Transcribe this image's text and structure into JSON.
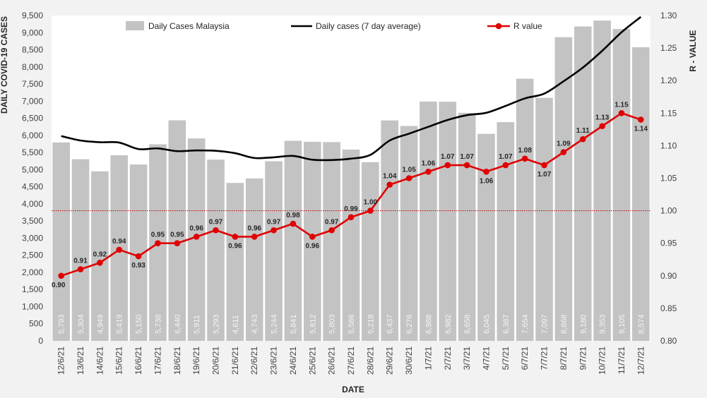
{
  "chart_data": {
    "type": "bar",
    "xlabel": "DATE",
    "ylabel": "DAILY COVID-19 CASES",
    "y2label": "R - VALUE",
    "ylim": [
      0,
      9500
    ],
    "y_ticks": [
      "0",
      "500",
      "1,000",
      "1,500",
      "2,000",
      "2,500",
      "3,000",
      "3,500",
      "4,000",
      "4,500",
      "5,000",
      "5,500",
      "6,000",
      "6,500",
      "7,000",
      "7,500",
      "8,000",
      "8,500",
      "9,000",
      "9,500"
    ],
    "y2lim": [
      0.8,
      1.3
    ],
    "y2_ticks": [
      "0.80",
      "0.85",
      "0.90",
      "0.95",
      "1.00",
      "1.05",
      "1.10",
      "1.15",
      "1.20",
      "1.25",
      "1.30"
    ],
    "legend_position": "top",
    "categories": [
      "12/6/21",
      "13/6/21",
      "14/6/21",
      "15/6/21",
      "16/6/21",
      "17/6/21",
      "18/6/21",
      "19/6/21",
      "20/6/21",
      "21/6/21",
      "22/6/21",
      "23/6/21",
      "24/6/21",
      "25/6/21",
      "26/6/21",
      "27/6/21",
      "28/6/21",
      "29/6/21",
      "30/6/21",
      "1/7/21",
      "2/7/21",
      "3/7/21",
      "4/7/21",
      "5/7/21",
      "6/7/21",
      "7/7/21",
      "8/7/21",
      "9/7/21",
      "10/7/21",
      "11/7/21",
      "12/7/21"
    ],
    "series": [
      {
        "name": "Daily Cases Malaysia",
        "type": "bar",
        "axis": "left",
        "color": "#c3c3c3",
        "values": [
          5793,
          5304,
          4949,
          5419,
          5150,
          5738,
          6440,
          5911,
          5293,
          4611,
          4743,
          5244,
          5841,
          5812,
          5803,
          5586,
          5218,
          6437,
          6276,
          6988,
          6982,
          6658,
          6045,
          6387,
          7654,
          7097,
          8868,
          9180,
          9353,
          9105,
          8574
        ],
        "labels": [
          "5,793",
          "5,304",
          "4,949",
          "5,419",
          "5,150",
          "5,738",
          "6,440",
          "5,911",
          "5,293",
          "4,611",
          "4,743",
          "5,244",
          "5,841",
          "5,812",
          "5,803",
          "5,586",
          "5,218",
          "6,437",
          "6,276",
          "6,988",
          "6,982",
          "6,658",
          "6,045",
          "6,387",
          "7,654",
          "7,097",
          "8,868",
          "9,180",
          "9,353",
          "9,105",
          "8,574"
        ]
      },
      {
        "name": "Daily cases (7 day average)",
        "type": "line",
        "axis": "left",
        "color": "#000000",
        "values": [
          5980,
          5850,
          5800,
          5790,
          5600,
          5620,
          5540,
          5560,
          5550,
          5480,
          5340,
          5360,
          5400,
          5290,
          5280,
          5320,
          5430,
          5850,
          6050,
          6250,
          6450,
          6590,
          6660,
          6860,
          7080,
          7220,
          7580,
          7980,
          8470,
          9010,
          9460
        ]
      },
      {
        "name": "R value",
        "type": "line",
        "axis": "right",
        "color": "#e00000",
        "values": [
          0.9,
          0.91,
          0.92,
          0.94,
          0.93,
          0.95,
          0.95,
          0.96,
          0.97,
          0.96,
          0.96,
          0.97,
          0.98,
          0.96,
          0.97,
          0.99,
          1.0,
          1.04,
          1.05,
          1.06,
          1.07,
          1.07,
          1.06,
          1.07,
          1.08,
          1.07,
          1.09,
          1.11,
          1.13,
          1.15,
          1.14
        ],
        "labels": [
          "0.90",
          "0.91",
          "0.92",
          "0.94",
          "0.93",
          "0.95",
          "0.95",
          "0.96",
          "0.97",
          "0.96",
          "0.96",
          "0.97",
          "0.98",
          "0.96",
          "0.97",
          "0.99",
          "1.00",
          "1.04",
          "1.05",
          "1.06",
          "1.07",
          "1.07",
          "1.06",
          "1.07",
          "1.08",
          "1.07",
          "1.09",
          "1.11",
          "1.13",
          "1.15",
          "1.14"
        ]
      }
    ],
    "reference_line": {
      "axis": "right",
      "value": 1.0,
      "color": "#c00000",
      "style": "dotted"
    }
  }
}
